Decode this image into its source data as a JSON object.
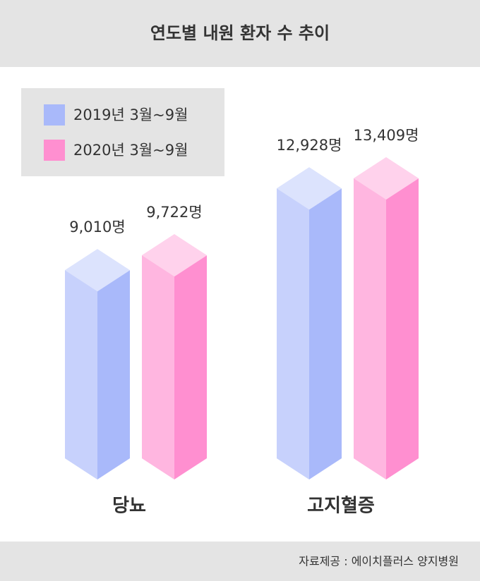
{
  "chart_data": {
    "type": "bar3d",
    "title": "연도별 내원 환자 수 추이",
    "categories": [
      "당뇨",
      "고지혈증"
    ],
    "series": [
      {
        "name": "2019년 3월~9월",
        "color": "#a9b9fa",
        "values": [
          9010,
          12928
        ],
        "value_labels": [
          "9,010명",
          "12,928명"
        ]
      },
      {
        "name": "2020년 3월~9월",
        "color": "#ff8fd0",
        "values": [
          9722,
          13409
        ],
        "value_labels": [
          "9,722명",
          "13,409명"
        ]
      }
    ],
    "source": "자료제공 : 에이치플러스 양지병원"
  }
}
